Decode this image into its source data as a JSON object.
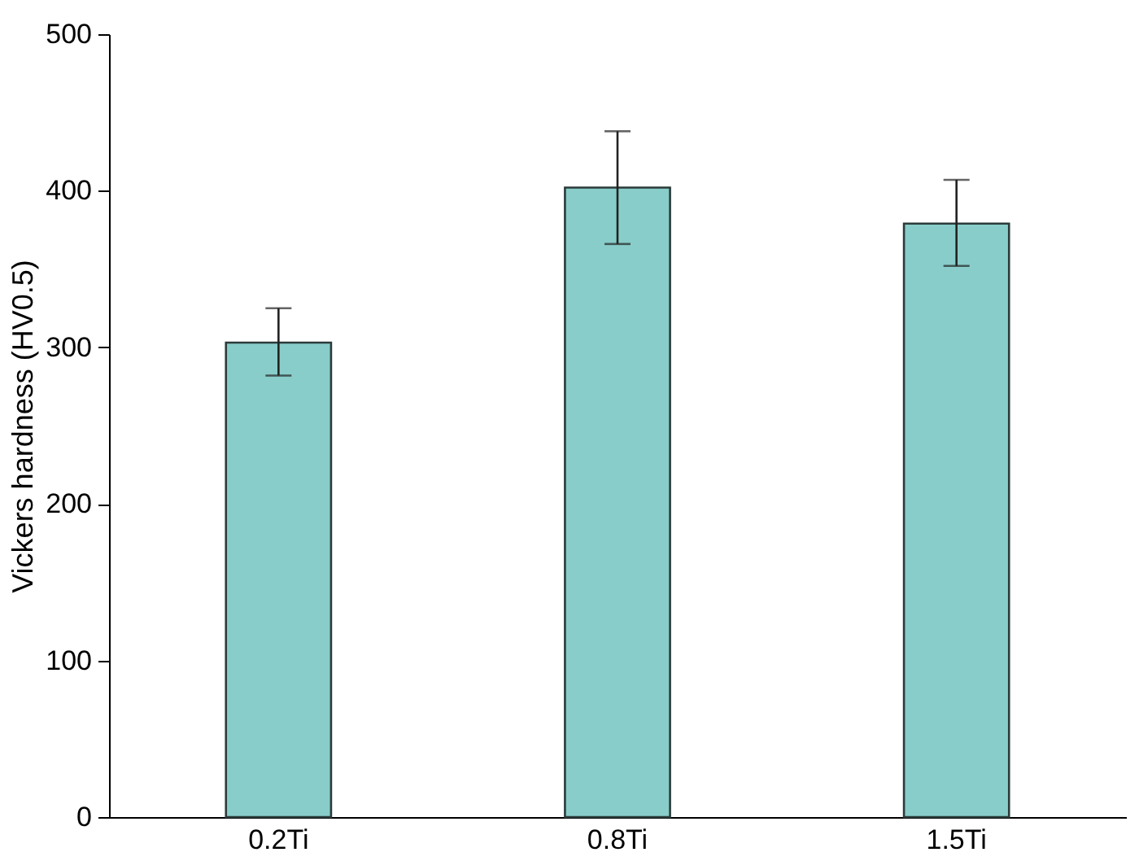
{
  "chart_data": {
    "type": "bar",
    "ylabel": "Vickers hardness (HV0.5)",
    "categories": [
      "0.2Ti",
      "0.8Ti",
      "1.5Ti"
    ],
    "values": [
      303,
      402,
      379
    ],
    "errors": [
      [
        282,
        325
      ],
      [
        366,
        438
      ],
      [
        352,
        407
      ]
    ],
    "color": "#88cdc9",
    "ylim": [
      0,
      500
    ],
    "yticks": [
      0,
      100,
      200,
      300,
      400,
      500
    ],
    "grid": false
  }
}
